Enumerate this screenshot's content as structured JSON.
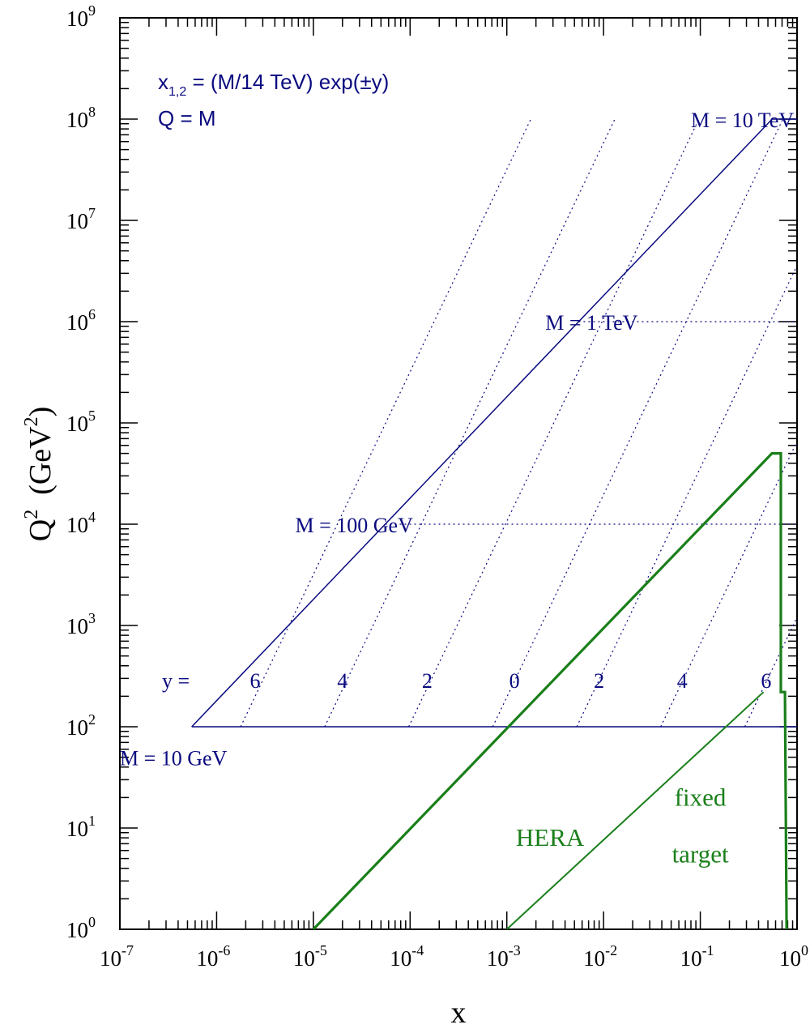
{
  "chart_data": {
    "type": "line",
    "x_scale": "log",
    "y_scale": "log",
    "xlim": [
      1e-07,
      1
    ],
    "ylim": [
      1,
      1000000000.0
    ],
    "xlabel": "x",
    "ylabel": "Q",
    "ylabel_sup": "2",
    "ylabel_unit": "(GeV",
    "ylabel_unit_sup": "2",
    "ylabel_unit_close": ")",
    "x_ticks": [
      {
        "base": "10",
        "exp": "-7",
        "value": 1e-07
      },
      {
        "base": "10",
        "exp": "-6",
        "value": 1e-06
      },
      {
        "base": "10",
        "exp": "-5",
        "value": 1e-05
      },
      {
        "base": "10",
        "exp": "-4",
        "value": 0.0001
      },
      {
        "base": "10",
        "exp": "-3",
        "value": 0.001
      },
      {
        "base": "10",
        "exp": "-2",
        "value": 0.01
      },
      {
        "base": "10",
        "exp": "-1",
        "value": 0.1
      },
      {
        "base": "10",
        "exp": "0",
        "value": 1
      }
    ],
    "y_ticks": [
      {
        "base": "10",
        "exp": "0",
        "value": 1
      },
      {
        "base": "10",
        "exp": "1",
        "value": 10
      },
      {
        "base": "10",
        "exp": "2",
        "value": 100
      },
      {
        "base": "10",
        "exp": "3",
        "value": 1000
      },
      {
        "base": "10",
        "exp": "4",
        "value": 10000
      },
      {
        "base": "10",
        "exp": "5",
        "value": 100000
      },
      {
        "base": "10",
        "exp": "6",
        "value": 1000000
      },
      {
        "base": "10",
        "exp": "7",
        "value": 10000000
      },
      {
        "base": "10",
        "exp": "8",
        "value": 100000000
      },
      {
        "base": "10",
        "exp": "9",
        "value": 1000000000
      }
    ],
    "formula": {
      "line1_pre": "x",
      "line1_sub": "1,2",
      "line1_post": " = (M/14 TeV) exp(±y)",
      "line2": "Q = M"
    },
    "mass_labels": [
      {
        "text": "M = 10 TeV",
        "x": 0.08,
        "y": 100000000.0
      },
      {
        "text": "M = 1 TeV",
        "x": 0.0025,
        "y": 1000000.0
      },
      {
        "text": "M = 100 GeV",
        "x": 6.5e-06,
        "y": 10000
      },
      {
        "text": "M = 10 GeV",
        "x": 1e-07,
        "y": 50
      }
    ],
    "mass_lines": [
      {
        "name": "M = 10 GeV",
        "M_GeV": 10,
        "Q2": 100,
        "x_min": 5.53e-07,
        "x_max": 1
      },
      {
        "name": "M = 100 GeV",
        "M_GeV": 100,
        "Q2": 10000,
        "x_min": 5.53e-05,
        "x_max": 1
      },
      {
        "name": "M = 1 TeV",
        "M_GeV": 1000,
        "Q2": 1000000,
        "x_min": 0.00553,
        "x_max": 1
      },
      {
        "name": "M = 10 TeV",
        "M_GeV": 10000,
        "Q2": 100000000,
        "x_min": 0.553,
        "x_max": 1
      }
    ],
    "envelope": {
      "points": [
        [
          5.53e-07,
          100
        ],
        [
          0.553,
          100000000.0
        ]
      ]
    },
    "rapidity_label": "y =",
    "rapidity_lines": [
      {
        "label": "6",
        "y": 6,
        "label_x": 2.5e-06
      },
      {
        "label": "4",
        "y": 4,
        "label_x": 2e-05
      },
      {
        "label": "2",
        "y": 2,
        "label_x": 0.00015
      },
      {
        "label": "0",
        "y": 0,
        "label_x": 0.0012
      },
      {
        "label": "2",
        "y": -2,
        "label_x": 0.009
      },
      {
        "label": "4",
        "y": -4,
        "label_x": 0.065
      },
      {
        "label": "6",
        "y": -6,
        "label_x": 0.48
      }
    ],
    "series": [
      {
        "name": "HERA",
        "color": "#1a7f1a",
        "points": [
          [
            1e-05,
            1
          ],
          [
            0.55,
            50000
          ],
          [
            0.68,
            50000
          ],
          [
            0.68,
            220
          ],
          [
            0.75,
            220
          ],
          [
            0.78,
            1
          ]
        ]
      },
      {
        "name": "fixed target",
        "color": "#1a7f1a",
        "points": [
          [
            0.001,
            1
          ],
          [
            0.45,
            220
          ]
        ]
      }
    ],
    "region_labels": [
      {
        "text": "HERA",
        "x": 0.0028,
        "y": 8
      },
      {
        "text": "fixed",
        "x": 0.1,
        "y": 20
      },
      {
        "text": "target",
        "x": 0.1,
        "y": 5.5
      }
    ],
    "colors": {
      "accent_blue": "#0a0a80",
      "green": "#1a7f1a",
      "axis": "#000000"
    }
  }
}
